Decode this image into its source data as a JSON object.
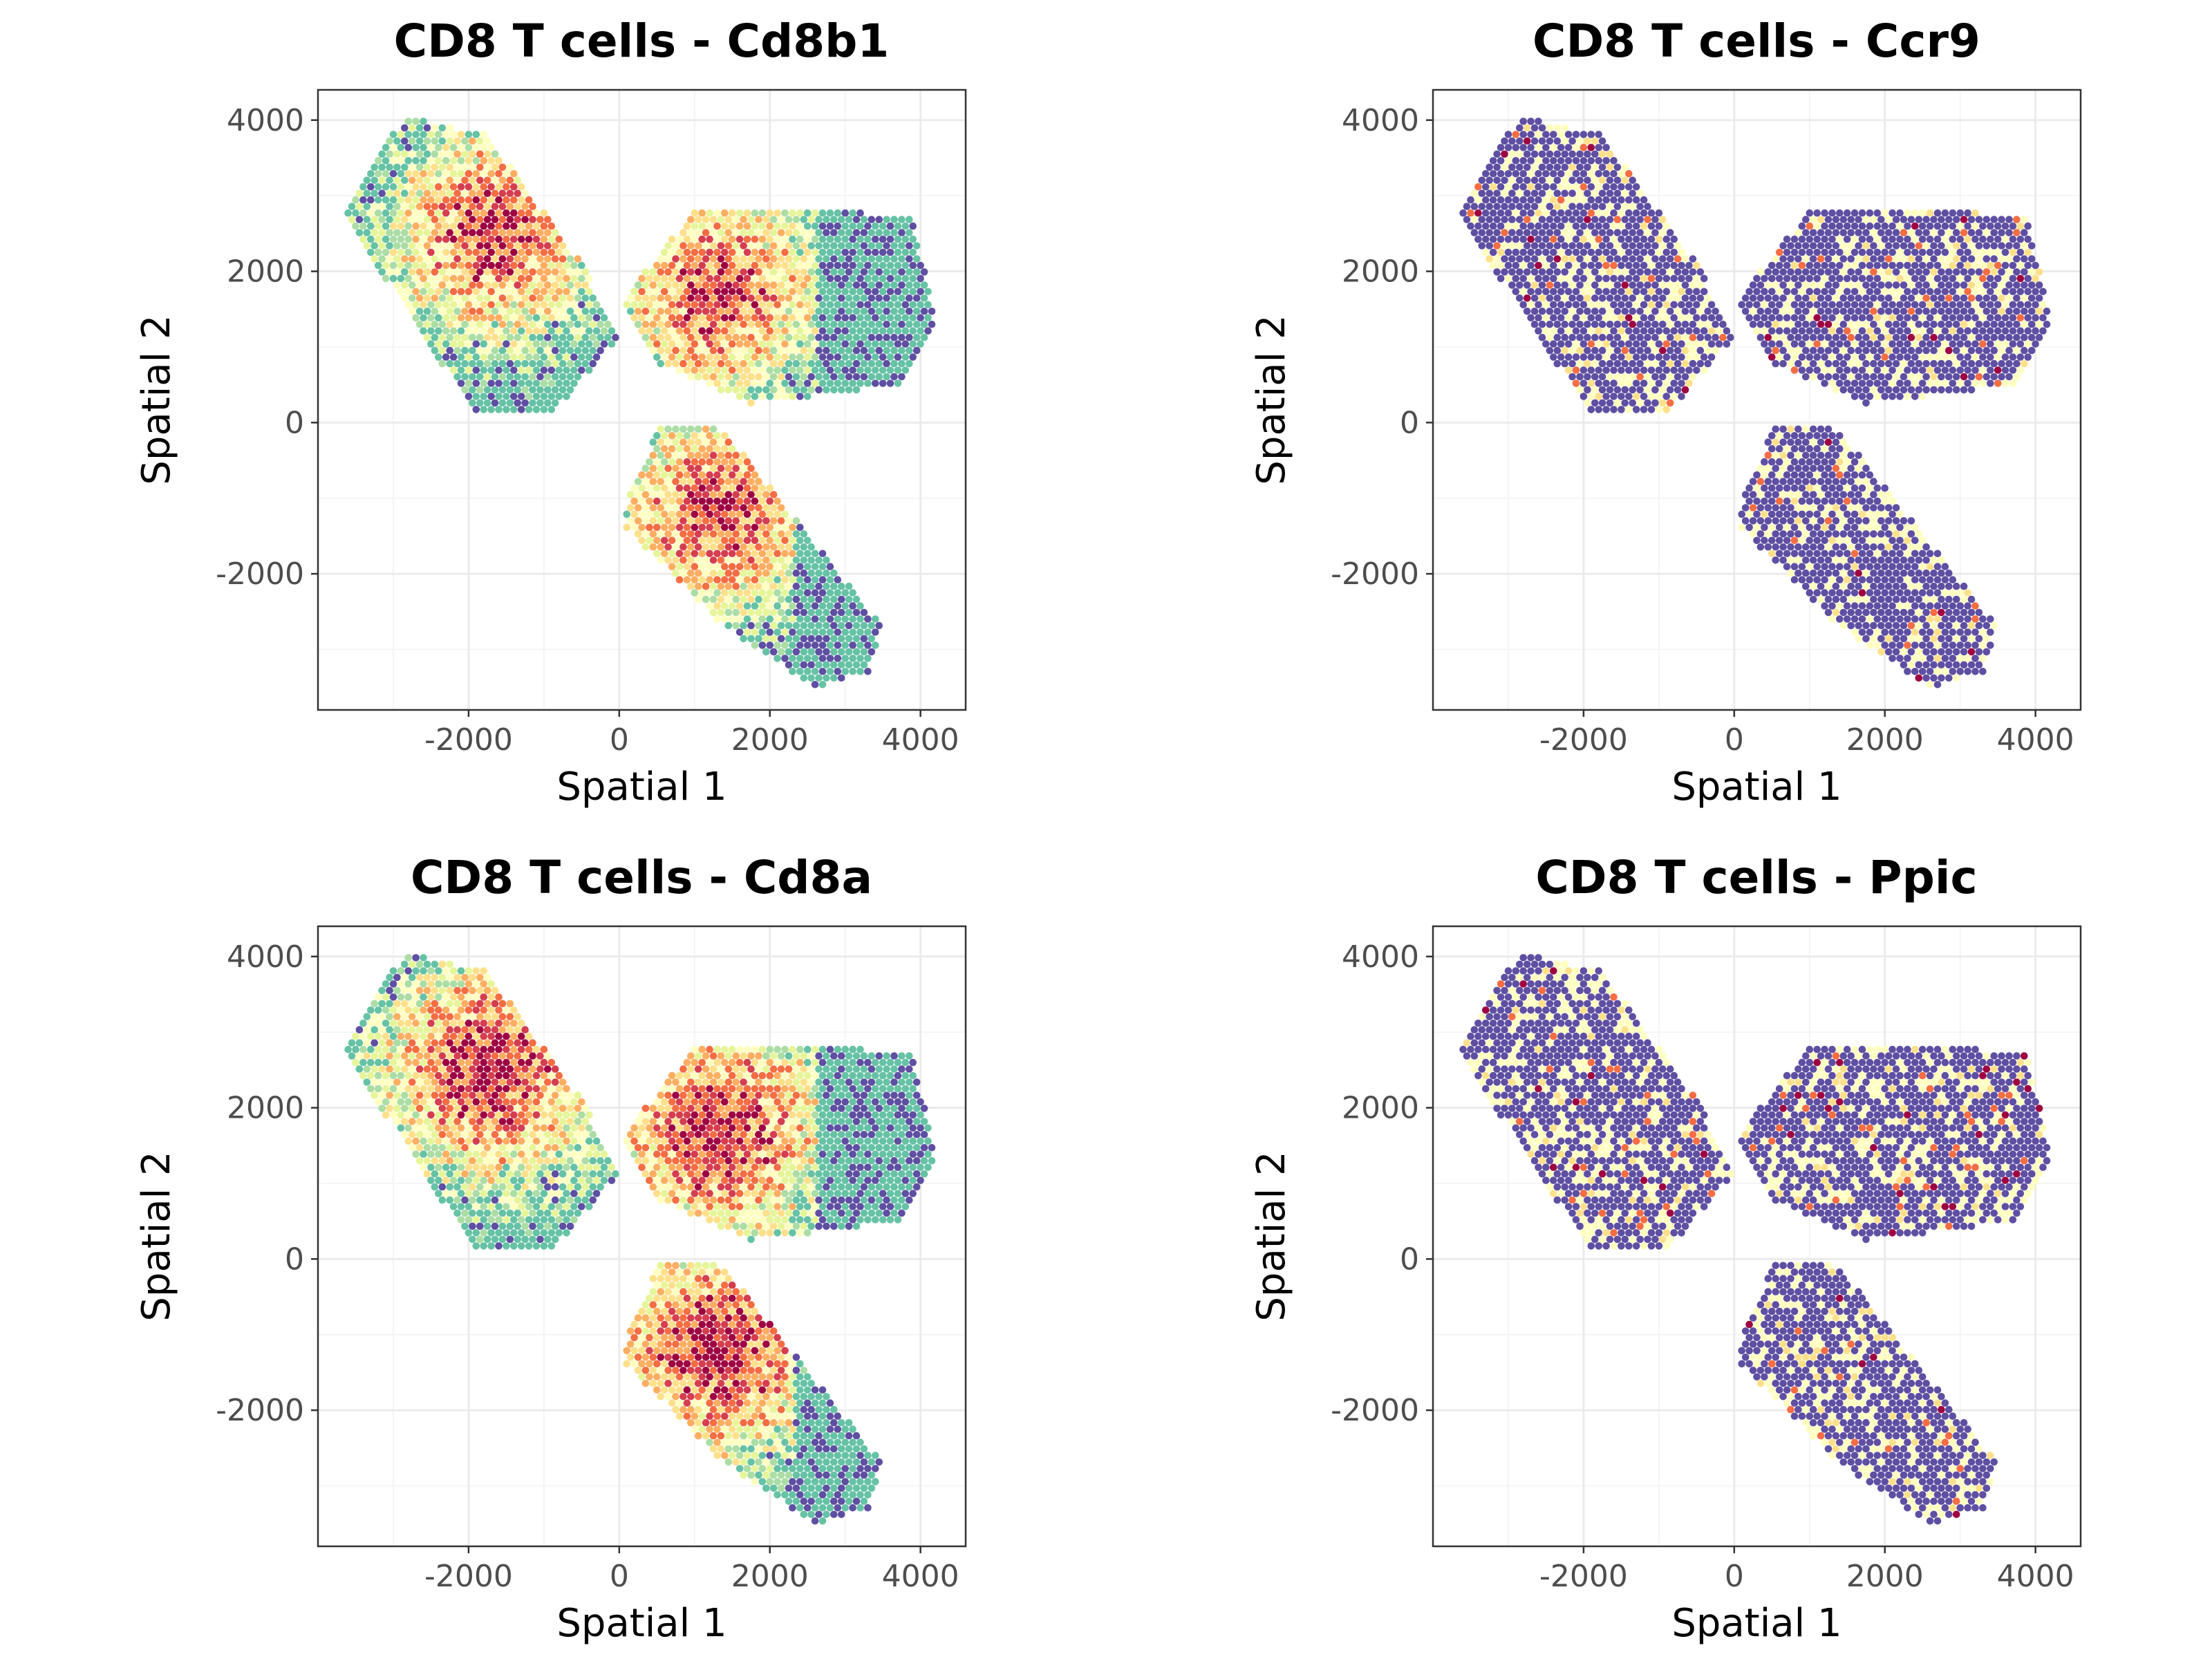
{
  "chart_data": [
    {
      "type": "scatter",
      "title": "CD8 T cells - Cd8b1",
      "xlabel": "Spatial 1",
      "ylabel": "Spatial 2",
      "xlim": [
        -4000,
        4600
      ],
      "ylim": [
        -3800,
        4400
      ],
      "xticks": [
        -2000,
        0,
        2000,
        4000
      ],
      "yticks": [
        -2000,
        0,
        2000,
        4000
      ],
      "xtick_labels": [
        "-2000",
        "0",
        "2000",
        "4000"
      ],
      "ytick_labels": [
        "-2000",
        "0",
        "2000",
        "4000"
      ],
      "grid": true,
      "legend": "none",
      "expression_level": "medium"
    },
    {
      "type": "scatter",
      "title": "CD8 T cells - Ccr9",
      "xlabel": "Spatial 1",
      "ylabel": "Spatial 2",
      "xlim": [
        -4000,
        4600
      ],
      "ylim": [
        -3800,
        4400
      ],
      "xticks": [
        -2000,
        0,
        2000,
        4000
      ],
      "yticks": [
        -2000,
        0,
        2000,
        4000
      ],
      "xtick_labels": [
        "-2000",
        "0",
        "2000",
        "4000"
      ],
      "ytick_labels": [
        "-2000",
        "0",
        "2000",
        "4000"
      ],
      "grid": true,
      "legend": "none",
      "expression_level": "sparse"
    },
    {
      "type": "scatter",
      "title": "CD8 T cells - Cd8a",
      "xlabel": "Spatial 1",
      "ylabel": "Spatial 2",
      "xlim": [
        -4000,
        4600
      ],
      "ylim": [
        -3800,
        4400
      ],
      "xticks": [
        -2000,
        0,
        2000,
        4000
      ],
      "yticks": [
        -2000,
        0,
        2000,
        4000
      ],
      "xtick_labels": [
        "-2000",
        "0",
        "2000",
        "4000"
      ],
      "ytick_labels": [
        "-2000",
        "0",
        "2000",
        "4000"
      ],
      "grid": true,
      "legend": "none",
      "expression_level": "high"
    },
    {
      "type": "scatter",
      "title": "CD8 T cells - Ppic",
      "xlabel": "Spatial 1",
      "ylabel": "Spatial 2",
      "xlim": [
        -4000,
        4600
      ],
      "ylim": [
        -3800,
        4400
      ],
      "xticks": [
        -2000,
        0,
        2000,
        4000
      ],
      "yticks": [
        -2000,
        0,
        2000,
        4000
      ],
      "xtick_labels": [
        "-2000",
        "0",
        "2000",
        "4000"
      ],
      "ytick_labels": [
        "-2000",
        "0",
        "2000",
        "4000"
      ],
      "grid": true,
      "legend": "none",
      "expression_level": "sparse"
    }
  ],
  "regions": [
    {
      "name": "",
      "polygon": [
        [
          -3600,
          2900
        ],
        [
          -2850,
          4050
        ],
        [
          -1750,
          3800
        ],
        [
          -500,
          2100
        ],
        [
          0,
          1150
        ],
        [
          -900,
          100
        ],
        [
          -1900,
          100
        ],
        [
          -3600,
          2650
        ]
      ]
    },
    {
      "name": "",
      "polygon": [
        [
          180,
          1800
        ],
        [
          1050,
          2850
        ],
        [
          3900,
          2750
        ],
        [
          4200,
          1250
        ],
        [
          3700,
          500
        ],
        [
          1750,
          250
        ],
        [
          500,
          800
        ],
        [
          80,
          1500
        ]
      ]
    },
    {
      "name": "",
      "polygon": [
        [
          80,
          -1100
        ],
        [
          550,
          0
        ],
        [
          1400,
          -100
        ],
        [
          3500,
          -2700
        ],
        [
          3300,
          -3300
        ],
        [
          2600,
          -3500
        ],
        [
          1400,
          -2700
        ],
        [
          100,
          -1400
        ]
      ]
    }
  ],
  "spot_spacing": 100,
  "palette": [
    "#5e4fa2",
    "#66c2a5",
    "#abdda4",
    "#e6f598",
    "#ffffbf",
    "#fee08b",
    "#fdae61",
    "#f46d43",
    "#d53e4f",
    "#9e0142"
  ]
}
